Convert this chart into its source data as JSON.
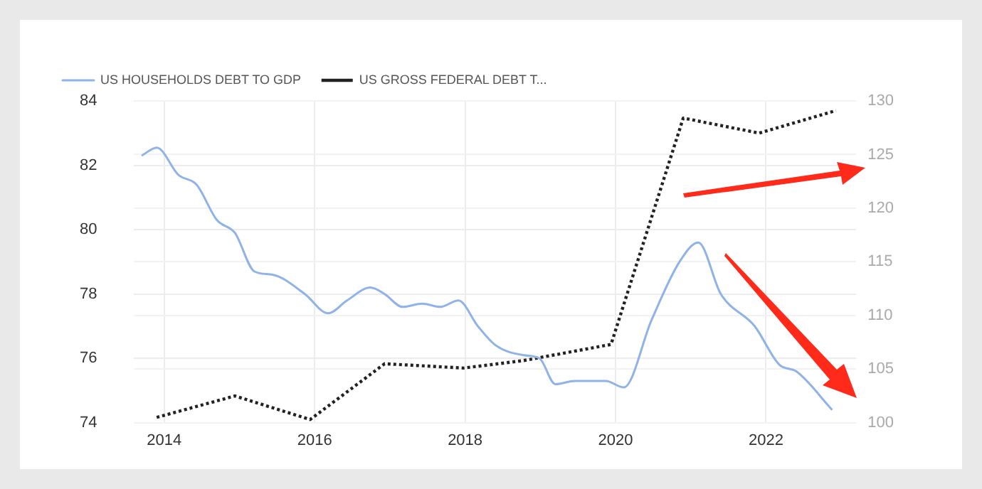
{
  "chart_data": {
    "type": "line",
    "xlim": [
      2013.6,
      2023.2
    ],
    "xticks": [
      2014,
      2016,
      2018,
      2020,
      2022
    ],
    "ylim": [
      74,
      84
    ],
    "yticks": [
      74,
      76,
      78,
      80,
      82,
      84
    ],
    "y2lim": [
      100,
      130
    ],
    "y2ticks": [
      100,
      105,
      110,
      115,
      120,
      125,
      130
    ],
    "grid": true,
    "legend": "top left",
    "marker": "none",
    "series": [
      {
        "name": "US HOUSEHOLDS DEBT TO GDP",
        "color": "#8fb3e8",
        "line_style": "solid",
        "x": [
          2013.7,
          2013.9,
          2014.19,
          2014.43,
          2014.7,
          2014.94,
          2015.2,
          2015.44,
          2015.87,
          2016.18,
          2016.43,
          2016.74,
          2016.93,
          2017.17,
          2017.43,
          2017.67,
          2017.91,
          2018.17,
          2018.41,
          2018.78,
          2018.99,
          2019.2,
          2019.46,
          2019.87,
          2020.11,
          2020.48,
          2020.85,
          2021.1,
          2021.4,
          2021.85,
          2022.18,
          2022.4,
          2022.88
        ],
        "values": [
          82.3,
          82.55,
          81.7,
          81.4,
          80.3,
          79.9,
          78.7,
          78.6,
          78.0,
          77.4,
          77.8,
          78.2,
          78.0,
          77.6,
          77.7,
          77.6,
          77.8,
          77.0,
          76.4,
          76.1,
          76.0,
          75.2,
          75.3,
          75.3,
          75.1,
          77.2,
          79.0,
          79.6,
          78.0,
          77.0,
          75.8,
          75.6,
          74.4
        ]
      },
      {
        "name": "US GROSS FEDERAL DEBT T...",
        "color": "#222222",
        "line_style": "dotted",
        "axis": "y2",
        "x": [
          2013.9,
          2014.94,
          2015.94,
          2016.93,
          2017.98,
          2018.78,
          2019.94,
          2020.9,
          2021.91,
          2022.93
        ],
        "values": [
          100.5,
          102.5,
          100.3,
          105.5,
          105.1,
          105.8,
          107.3,
          128.4,
          127.0,
          129.1
        ]
      }
    ]
  }
}
